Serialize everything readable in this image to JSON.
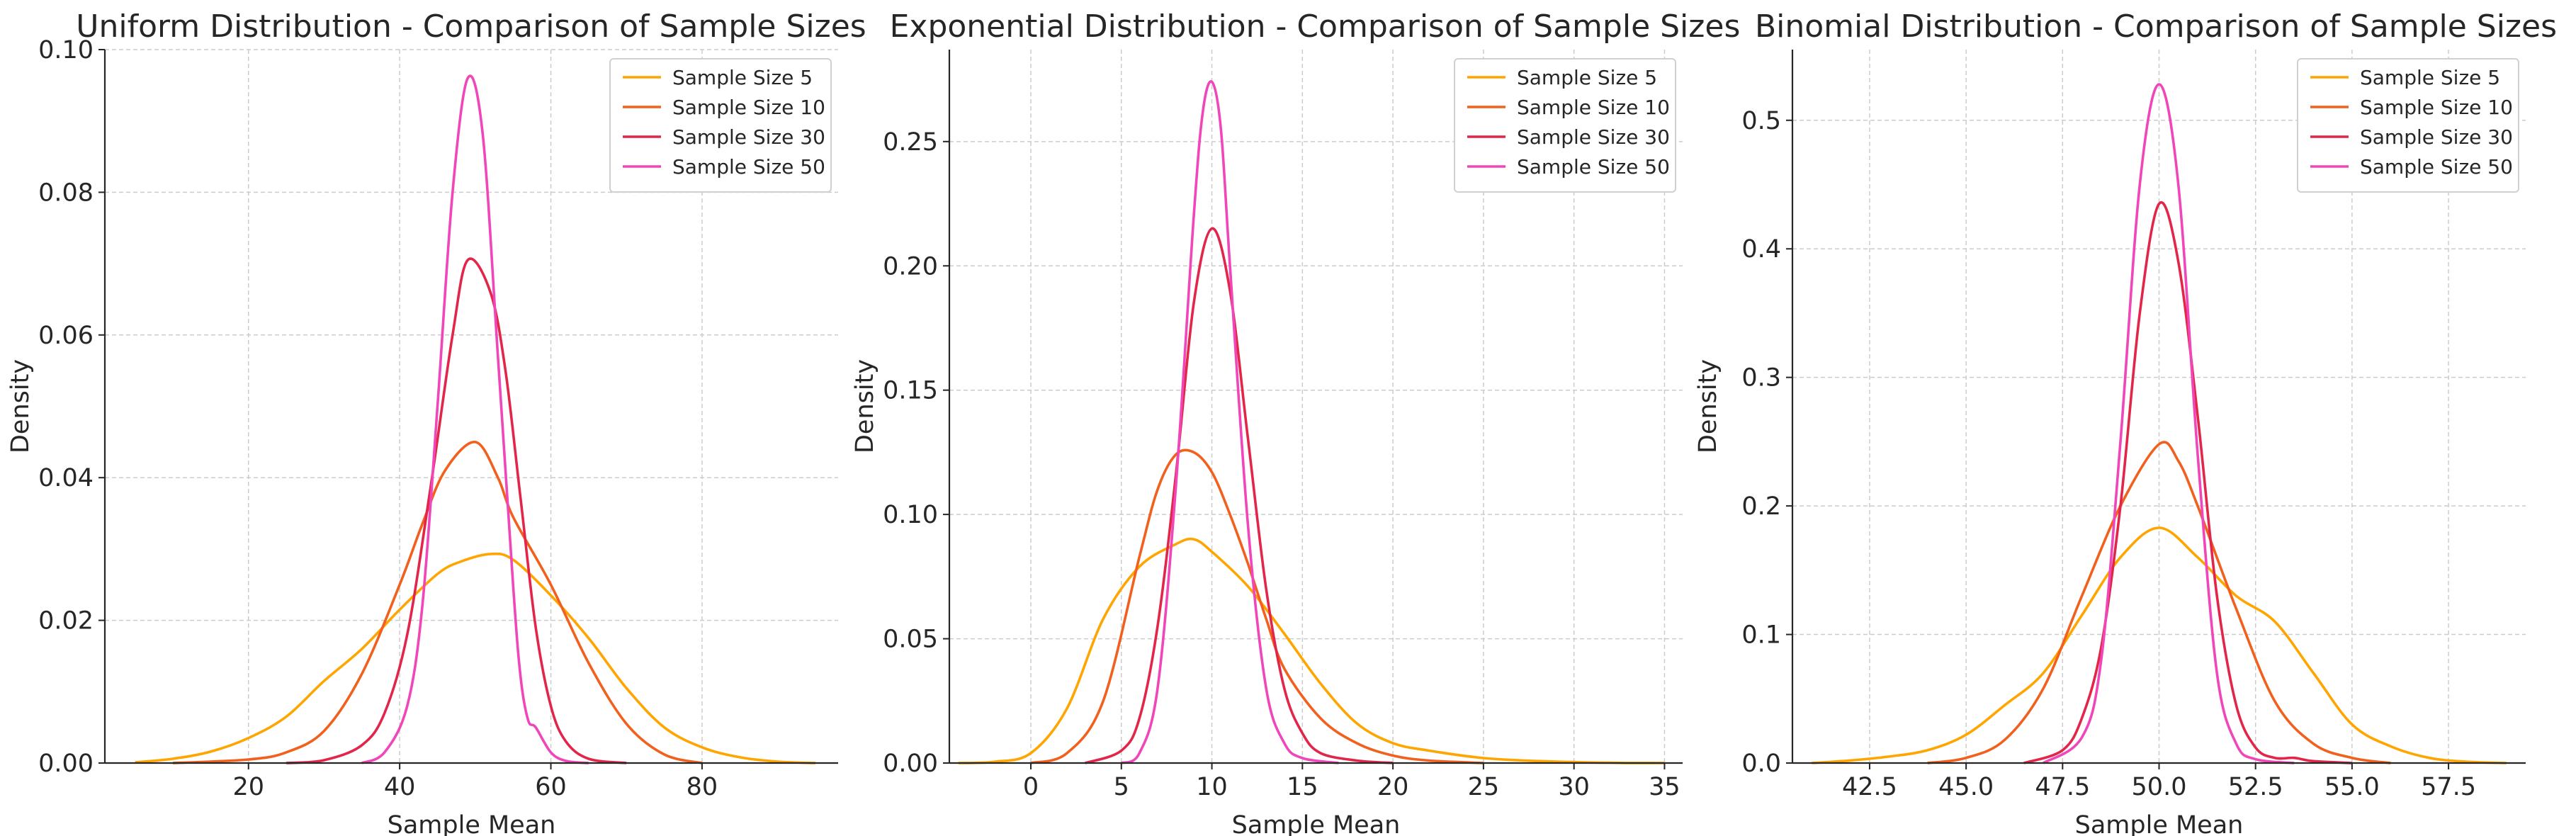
{
  "chart_data": [
    {
      "type": "line",
      "title": "Uniform Distribution - Comparison of Sample Sizes",
      "xlabel": "Sample Mean",
      "ylabel": "Density",
      "xlim": [
        1,
        98
      ],
      "ylim": [
        0,
        0.1
      ],
      "xticks": [
        20,
        40,
        60,
        80
      ],
      "xtick_labels": [
        "20",
        "40",
        "60",
        "80"
      ],
      "yticks": [
        0,
        0.02,
        0.04,
        0.06,
        0.08,
        0.1
      ],
      "ytick_labels": [
        "0.00",
        "0.02",
        "0.04",
        "0.06",
        "0.08",
        "0.10"
      ],
      "grid": true,
      "legend": "top-right",
      "series": [
        {
          "name": "Sample Size 5",
          "color": "#ffa500",
          "x": [
            5,
            10,
            15,
            20,
            25,
            30,
            35,
            40,
            45,
            48,
            52,
            55,
            60,
            65,
            70,
            75,
            80,
            85,
            90,
            95
          ],
          "y": [
            0.0001,
            0.0006,
            0.0016,
            0.0035,
            0.0065,
            0.0115,
            0.016,
            0.0215,
            0.0265,
            0.0282,
            0.0293,
            0.0285,
            0.0235,
            0.0175,
            0.0105,
            0.005,
            0.0022,
            0.0008,
            0.0002,
            0.0
          ]
        },
        {
          "name": "Sample Size 10",
          "color": "#f1601d",
          "x": [
            10,
            20,
            25,
            30,
            35,
            40,
            43,
            46,
            50,
            53,
            55,
            60,
            65,
            70,
            75,
            80
          ],
          "y": [
            0.0,
            0.0005,
            0.0015,
            0.0045,
            0.0125,
            0.025,
            0.0335,
            0.041,
            0.045,
            0.04,
            0.0345,
            0.025,
            0.014,
            0.0055,
            0.0012,
            0.0
          ]
        },
        {
          "name": "Sample Size 30",
          "color": "#e2264a",
          "x": [
            25,
            30,
            35,
            38,
            41,
            44,
            47,
            49,
            52,
            54,
            56,
            58,
            60,
            62,
            65,
            70
          ],
          "y": [
            0.0,
            0.0004,
            0.0025,
            0.007,
            0.018,
            0.038,
            0.06,
            0.0705,
            0.066,
            0.055,
            0.037,
            0.019,
            0.008,
            0.003,
            0.0006,
            0.0
          ]
        },
        {
          "name": "Sample Size 50",
          "color": "#f046b9",
          "x": [
            35,
            38,
            41,
            43,
            45,
            47,
            49,
            51,
            53,
            55,
            56,
            57,
            58,
            60,
            62,
            65
          ],
          "y": [
            0.0,
            0.0015,
            0.008,
            0.022,
            0.05,
            0.08,
            0.096,
            0.088,
            0.057,
            0.025,
            0.012,
            0.006,
            0.005,
            0.0015,
            0.0003,
            0.0
          ]
        }
      ]
    },
    {
      "type": "line",
      "title": "Exponential Distribution - Comparison of Sample Sizes",
      "xlabel": "Sample Mean",
      "ylabel": "Density",
      "xlim": [
        -4.5,
        36
      ],
      "ylim": [
        0,
        0.287
      ],
      "xticks": [
        0,
        5,
        10,
        15,
        20,
        25,
        30,
        35
      ],
      "xtick_labels": [
        "0",
        "5",
        "10",
        "15",
        "20",
        "25",
        "30",
        "35"
      ],
      "yticks": [
        0,
        0.05,
        0.1,
        0.15,
        0.2,
        0.25
      ],
      "ytick_labels": [
        "0.00",
        "0.05",
        "0.10",
        "0.15",
        "0.20",
        "0.25"
      ],
      "grid": true,
      "legend": "top-right",
      "series": [
        {
          "name": "Sample Size 5",
          "color": "#ffa500",
          "x": [
            -4,
            -2,
            0,
            2,
            4,
            6,
            8,
            9,
            10,
            12,
            14,
            16,
            18,
            20,
            22,
            25,
            28,
            32,
            35
          ],
          "y": [
            0.0,
            0.0005,
            0.004,
            0.022,
            0.058,
            0.079,
            0.088,
            0.09,
            0.085,
            0.071,
            0.052,
            0.032,
            0.016,
            0.008,
            0.005,
            0.002,
            0.0008,
            0.0001,
            0.0
          ]
        },
        {
          "name": "Sample Size 10",
          "color": "#f1601d",
          "x": [
            0,
            2,
            4,
            6,
            7,
            8,
            9,
            10,
            11,
            12,
            13,
            14,
            16,
            18,
            20,
            22,
            25
          ],
          "y": [
            0.0,
            0.004,
            0.025,
            0.083,
            0.11,
            0.124,
            0.125,
            0.117,
            0.1,
            0.08,
            0.058,
            0.038,
            0.018,
            0.008,
            0.003,
            0.001,
            0.0
          ]
        },
        {
          "name": "Sample Size 30",
          "color": "#e2264a",
          "x": [
            3,
            5,
            6,
            7,
            8,
            9,
            10,
            11,
            12,
            13,
            14,
            15,
            16,
            18,
            20
          ],
          "y": [
            0.0,
            0.005,
            0.018,
            0.055,
            0.115,
            0.185,
            0.215,
            0.19,
            0.13,
            0.07,
            0.03,
            0.012,
            0.004,
            0.001,
            0.0
          ]
        },
        {
          "name": "Sample Size 50",
          "color": "#f046b9",
          "x": [
            5,
            6,
            7,
            8,
            9,
            9.5,
            10,
            10.5,
            11,
            12,
            13,
            14,
            15,
            17
          ],
          "y": [
            0.0,
            0.004,
            0.03,
            0.11,
            0.22,
            0.262,
            0.274,
            0.255,
            0.2,
            0.095,
            0.03,
            0.008,
            0.002,
            0.0
          ]
        }
      ]
    },
    {
      "type": "line",
      "title": "Binomial Distribution - Comparison of Sample Sizes",
      "xlabel": "Sample Mean",
      "ylabel": "Density",
      "xlim": [
        40.5,
        59.5
      ],
      "ylim": [
        0,
        0.555
      ],
      "xticks": [
        42.5,
        45,
        47.5,
        50,
        52.5,
        55,
        57.5
      ],
      "xtick_labels": [
        "42.5",
        "45.0",
        "47.5",
        "50.0",
        "52.5",
        "55.0",
        "57.5"
      ],
      "yticks": [
        0,
        0.1,
        0.2,
        0.3,
        0.4,
        0.5
      ],
      "ytick_labels": [
        "0.0",
        "0.1",
        "0.2",
        "0.3",
        "0.4",
        "0.5"
      ],
      "grid": true,
      "legend": "top-right",
      "series": [
        {
          "name": "Sample Size 5",
          "color": "#ffa500",
          "x": [
            41,
            42,
            43,
            44,
            45,
            46,
            47,
            48,
            49,
            50,
            51,
            52,
            53,
            54,
            55,
            56,
            57,
            58,
            59
          ],
          "y": [
            0.0,
            0.002,
            0.005,
            0.01,
            0.022,
            0.045,
            0.07,
            0.115,
            0.16,
            0.183,
            0.16,
            0.13,
            0.11,
            0.07,
            0.03,
            0.013,
            0.004,
            0.001,
            0.0
          ]
        },
        {
          "name": "Sample Size 10",
          "color": "#f1601d",
          "x": [
            44,
            45,
            46,
            47,
            48,
            49,
            50,
            50.5,
            51,
            52,
            53,
            54,
            55,
            56
          ],
          "y": [
            0.0,
            0.004,
            0.018,
            0.058,
            0.13,
            0.2,
            0.248,
            0.235,
            0.2,
            0.12,
            0.048,
            0.015,
            0.004,
            0.0
          ]
        },
        {
          "name": "Sample Size 30",
          "color": "#e2264a",
          "x": [
            46.5,
            47.5,
            48,
            48.5,
            49,
            49.5,
            50,
            50.5,
            51,
            51.5,
            52,
            52.5,
            53,
            53.5,
            54,
            55
          ],
          "y": [
            0.0,
            0.01,
            0.035,
            0.09,
            0.2,
            0.35,
            0.435,
            0.39,
            0.27,
            0.13,
            0.045,
            0.012,
            0.004,
            0.004,
            0.0015,
            0.0
          ]
        },
        {
          "name": "Sample Size 50",
          "color": "#f046b9",
          "x": [
            47,
            48,
            48.5,
            49,
            49.5,
            50,
            50.5,
            51,
            51.5,
            52,
            52.5,
            53.5
          ],
          "y": [
            0.0,
            0.02,
            0.08,
            0.25,
            0.45,
            0.528,
            0.45,
            0.24,
            0.07,
            0.015,
            0.003,
            0.0
          ]
        }
      ]
    }
  ]
}
